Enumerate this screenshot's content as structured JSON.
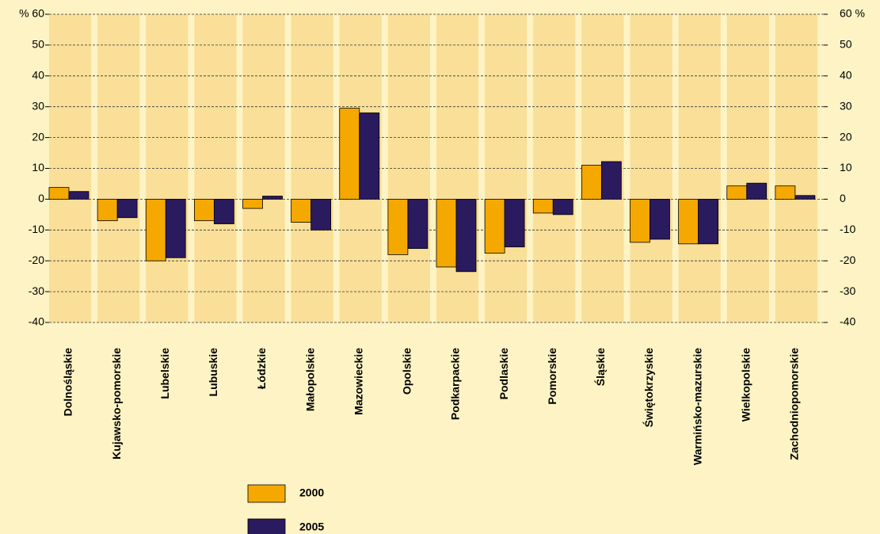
{
  "chart_data": {
    "type": "bar",
    "categories": [
      "Dolnośląskie",
      "Kujawsko-pomorskie",
      "Lubelskie",
      "Lubuskie",
      "Łódzkie",
      "Małopolskie",
      "Mazowieckie",
      "Opolskie",
      "Podkarpackie",
      "Podlaskie",
      "Pomorskie",
      "Śląskie",
      "Świętokrzyskie",
      "Warmińsko-mazurskie",
      "Wielkopolskie",
      "Zachodniopomorskie"
    ],
    "series": [
      {
        "name": "2000",
        "color": "#f5a800",
        "values": [
          3.8,
          -7,
          -20,
          -7,
          -3,
          -7.5,
          29.5,
          -18,
          -22,
          -17.5,
          -4.5,
          11,
          -14,
          -14.5,
          4.3,
          4.3
        ]
      },
      {
        "name": "2005",
        "color": "#2a1a5e",
        "values": [
          2.5,
          -6,
          -19,
          -8,
          1,
          -10,
          28,
          -16,
          -23.5,
          -15.5,
          -5,
          12.2,
          -13,
          -14.5,
          5.2,
          1.2
        ]
      }
    ],
    "ylim": [
      -40,
      60
    ],
    "yticks": [
      -40,
      -30,
      -20,
      -10,
      0,
      10,
      20,
      30,
      40,
      50,
      {
        "value": 60,
        "label": "% 60"
      }
    ],
    "y2lim": [
      -40,
      60
    ],
    "y2ticks": [
      -40,
      -30,
      -20,
      -10,
      0,
      10,
      20,
      30,
      40,
      50,
      {
        "value": 60,
        "label": "60 %"
      }
    ],
    "grid": true,
    "legend": "bottom"
  }
}
